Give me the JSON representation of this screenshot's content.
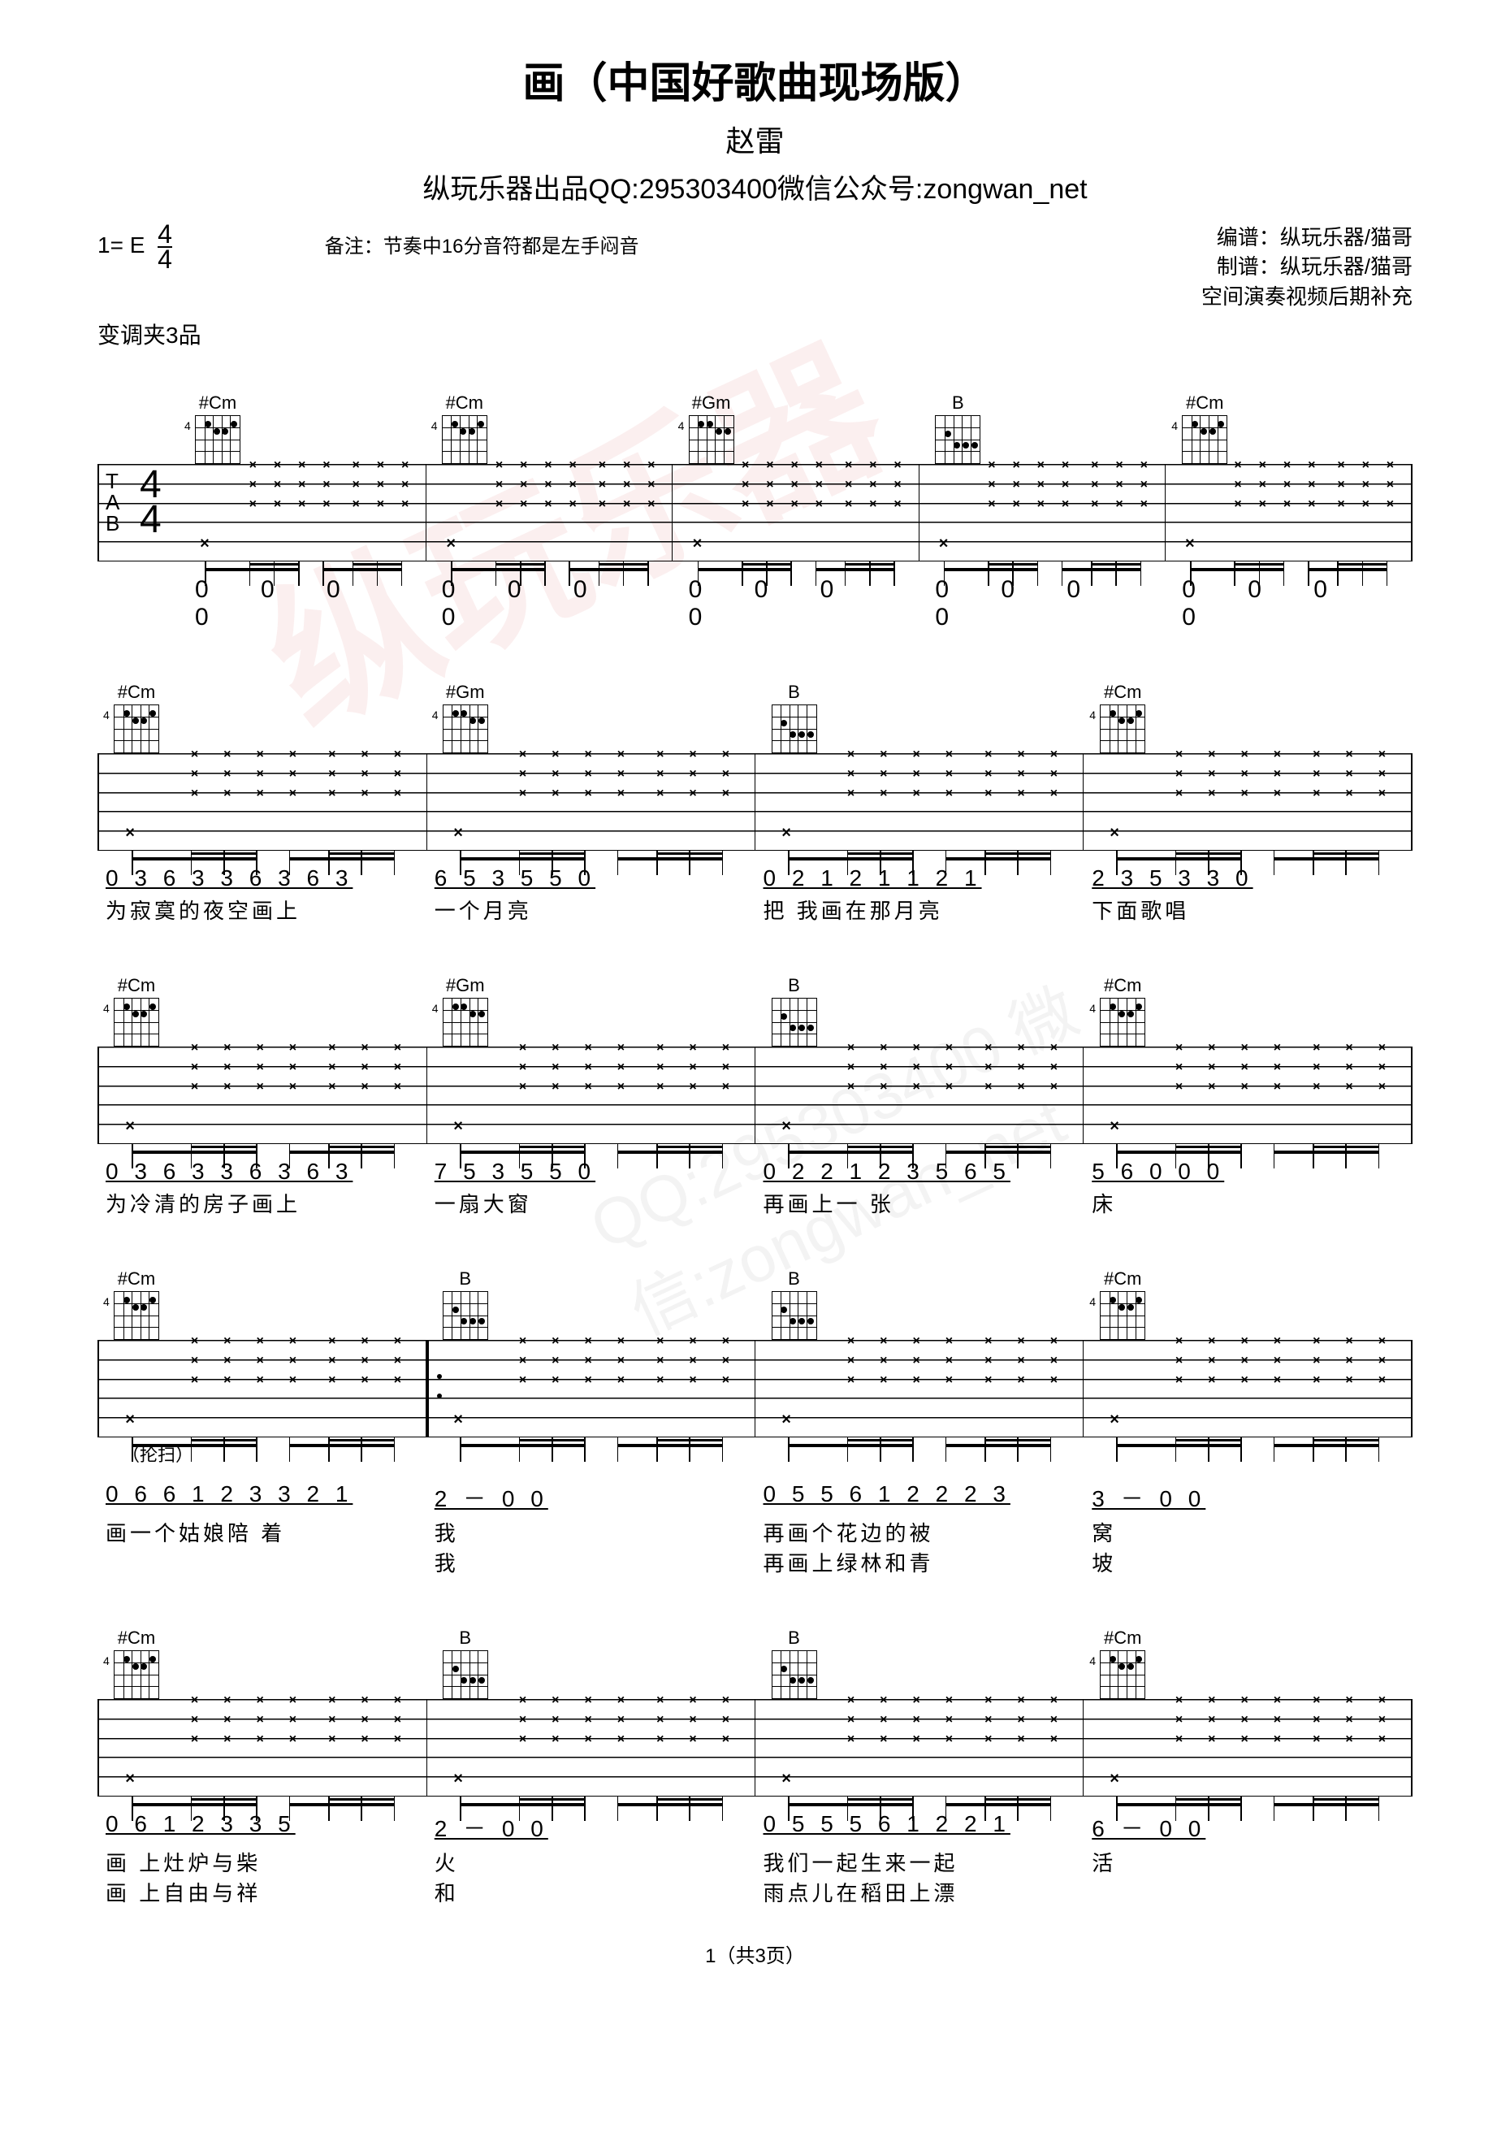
{
  "title": "画（中国好歌曲现场版）",
  "artist": "赵雷",
  "publisher": "纵玩乐器出品QQ:295303400微信公众号:zongwan_net",
  "key": "1= E",
  "time_signature": "4/4",
  "capo": "变调夹3品",
  "remark": "备注：节奏中16分音符都是左手闷音",
  "credit1": "编谱：纵玩乐器/猫哥",
  "credit2": "制谱：纵玩乐器/猫哥",
  "credit3": "空间演奏视频后期补充",
  "tab_clef": [
    "T",
    "A",
    "B"
  ],
  "time_num": "4",
  "time_den": "4",
  "chords": {
    "Cm": "#Cm",
    "Gm": "#Gm",
    "B": "B"
  },
  "systems": [
    {
      "chord_seq": [
        "#Cm",
        "#Cm",
        "#Gm",
        "B",
        "#Cm"
      ],
      "show_clef": true,
      "zeros": [
        "0 0 0 0",
        "0 0 0 0",
        "0 0 0 0",
        "0 0 0 0",
        "0 0 0 0"
      ]
    },
    {
      "chord_seq": [
        "#Cm",
        "#Gm",
        "B",
        "#Cm"
      ],
      "jianpu": [
        "0 3 6 3 3 6 3 6 3",
        "6 5 3 5 5   0",
        "0 2  1 2 1 1 2 1",
        "2 3 5 3 3   0"
      ],
      "lyrics": [
        "  为寂寞的夜空画上",
        "一个月亮",
        "    把 我画在那月亮",
        "下面歌唱"
      ]
    },
    {
      "chord_seq": [
        "#Cm",
        "#Gm",
        "B",
        "#Cm"
      ],
      "jianpu": [
        "0 3 6 3 3 6 3 6 3",
        "7 5 3 5 5   0",
        "0 2 2 1  2 3 5 6 5",
        "5 6 0   0   0"
      ],
      "lyrics": [
        "  为冷清的房子画上",
        "一扇大窗",
        "    再画上一  张",
        "床"
      ]
    },
    {
      "chord_seq": [
        "#Cm",
        "B",
        "B",
        "#Cm"
      ],
      "repeat_start_at": 1,
      "annotation": "（抡扫）",
      "jianpu": [
        "0 6 6 1  2 3 3 2 1",
        "2   －   0   0",
        "0 5 5 6  1 2  2 2 3",
        "3   －   0   0"
      ],
      "lyrics": [
        "  画一个姑娘陪 着",
        "我",
        "    再画个花边的被",
        "窝"
      ],
      "lyrics2": [
        "",
        "我",
        "    再画上绿林和青",
        "坡"
      ]
    },
    {
      "chord_seq": [
        "#Cm",
        "B",
        "B",
        "#Cm"
      ],
      "jianpu": [
        "0 6   1 2  3 3 5",
        "2   －   0   0",
        "0 5 5 5 6  1 2  2 1",
        "6   －   0   0"
      ],
      "lyrics": [
        "  画  上灶炉与柴",
        "火",
        "    我们一起生来一起",
        "活"
      ],
      "lyrics2": [
        "  画  上自由与祥",
        "和",
        "    雨点儿在稻田上漂",
        ""
      ]
    }
  ],
  "page": "1（共3页）",
  "watermark_main": "纵玩乐器",
  "watermark_sub": "QQ:295303400 微信:zongwan_net"
}
